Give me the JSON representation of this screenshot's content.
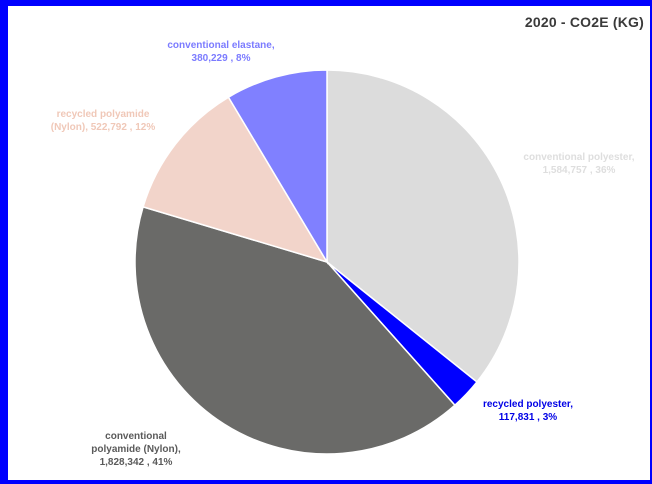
{
  "chart_data": {
    "type": "pie",
    "title": "2020 - CO2E (KG)",
    "start_angle_deg": 0,
    "direction": "clockwise",
    "slices": [
      {
        "name": "conventional polyester",
        "value": 1584757,
        "percent": 36,
        "color": "#dcdcdc",
        "label_lines": [
          "conventional polyester,",
          "1,584,757 , 36%"
        ],
        "label_color": "#dedede"
      },
      {
        "name": "recycled polyester",
        "value": 117831,
        "percent": 3,
        "color": "#0000ff",
        "label_lines": [
          "recycled polyester,",
          "117,831 , 3%"
        ],
        "label_color": "#0000e6"
      },
      {
        "name": "conventional polyamide (Nylon)",
        "value": 1828342,
        "percent": 41,
        "color": "#6a6a68",
        "label_lines": [
          "conventional",
          "polyamide (Nylon),",
          "1,828,342 , 41%"
        ],
        "label_color": "#5a5a5a"
      },
      {
        "name": "recycled polyamide (Nylon)",
        "value": 522792,
        "percent": 12,
        "color": "#f2d4ca",
        "label_lines": [
          "recycled polyamide",
          "(Nylon),  522,792 , 12%"
        ],
        "label_color": "#f0c8b8"
      },
      {
        "name": "conventional elastane",
        "value": 380229,
        "percent": 8,
        "color": "#8080ff",
        "label_lines": [
          "conventional elastane,",
          "380,229 , 8%"
        ],
        "label_color": "#7b7bff"
      }
    ]
  }
}
